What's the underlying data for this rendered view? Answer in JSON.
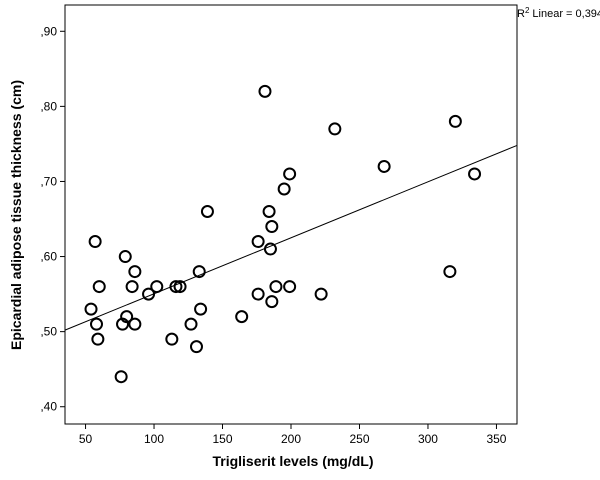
{
  "chart_data": {
    "type": "scatter",
    "title": "",
    "xlabel": "Trigliserit levels (mg/dL)",
    "ylabel": "Epicardial adipose tissue thickness (cm)",
    "xlim": [
      35,
      365
    ],
    "ylim": [
      0.377,
      0.935
    ],
    "x_ticks": [
      50,
      100,
      150,
      200,
      250,
      300,
      350
    ],
    "x_tick_labels": [
      "50",
      "100",
      "150",
      "200",
      "250",
      "300",
      "350"
    ],
    "y_ticks": [
      0.4,
      0.5,
      0.6,
      0.7,
      0.8,
      0.9
    ],
    "y_tick_labels": [
      ",40",
      ",50",
      ",60",
      ",70",
      ",80",
      ",90"
    ],
    "grid": false,
    "points": [
      {
        "x": 54,
        "y": 0.53
      },
      {
        "x": 57,
        "y": 0.62
      },
      {
        "x": 58,
        "y": 0.51
      },
      {
        "x": 59,
        "y": 0.49
      },
      {
        "x": 60,
        "y": 0.56
      },
      {
        "x": 76,
        "y": 0.44
      },
      {
        "x": 77,
        "y": 0.51
      },
      {
        "x": 79,
        "y": 0.6
      },
      {
        "x": 80,
        "y": 0.52
      },
      {
        "x": 84,
        "y": 0.56
      },
      {
        "x": 86,
        "y": 0.58
      },
      {
        "x": 86,
        "y": 0.51
      },
      {
        "x": 96,
        "y": 0.55
      },
      {
        "x": 102,
        "y": 0.56
      },
      {
        "x": 113,
        "y": 0.49
      },
      {
        "x": 116,
        "y": 0.56
      },
      {
        "x": 119,
        "y": 0.56
      },
      {
        "x": 127,
        "y": 0.51
      },
      {
        "x": 131,
        "y": 0.48
      },
      {
        "x": 133,
        "y": 0.58
      },
      {
        "x": 134,
        "y": 0.53
      },
      {
        "x": 139,
        "y": 0.66
      },
      {
        "x": 164,
        "y": 0.52
      },
      {
        "x": 176,
        "y": 0.55
      },
      {
        "x": 176,
        "y": 0.62
      },
      {
        "x": 181,
        "y": 0.82
      },
      {
        "x": 184,
        "y": 0.66
      },
      {
        "x": 185,
        "y": 0.61
      },
      {
        "x": 186,
        "y": 0.64
      },
      {
        "x": 186,
        "y": 0.54
      },
      {
        "x": 189,
        "y": 0.56
      },
      {
        "x": 195,
        "y": 0.69
      },
      {
        "x": 199,
        "y": 0.71
      },
      {
        "x": 199,
        "y": 0.56
      },
      {
        "x": 222,
        "y": 0.55
      },
      {
        "x": 232,
        "y": 0.77
      },
      {
        "x": 268,
        "y": 0.72
      },
      {
        "x": 316,
        "y": 0.58
      },
      {
        "x": 320,
        "y": 0.78
      },
      {
        "x": 334,
        "y": 0.71
      }
    ],
    "fit_line": {
      "x1": 35,
      "y1": 0.502,
      "x2": 365,
      "y2": 0.748
    },
    "r2_label": "Linear = 0,394",
    "r2_prefix": "R",
    "r2_sup": "2"
  }
}
